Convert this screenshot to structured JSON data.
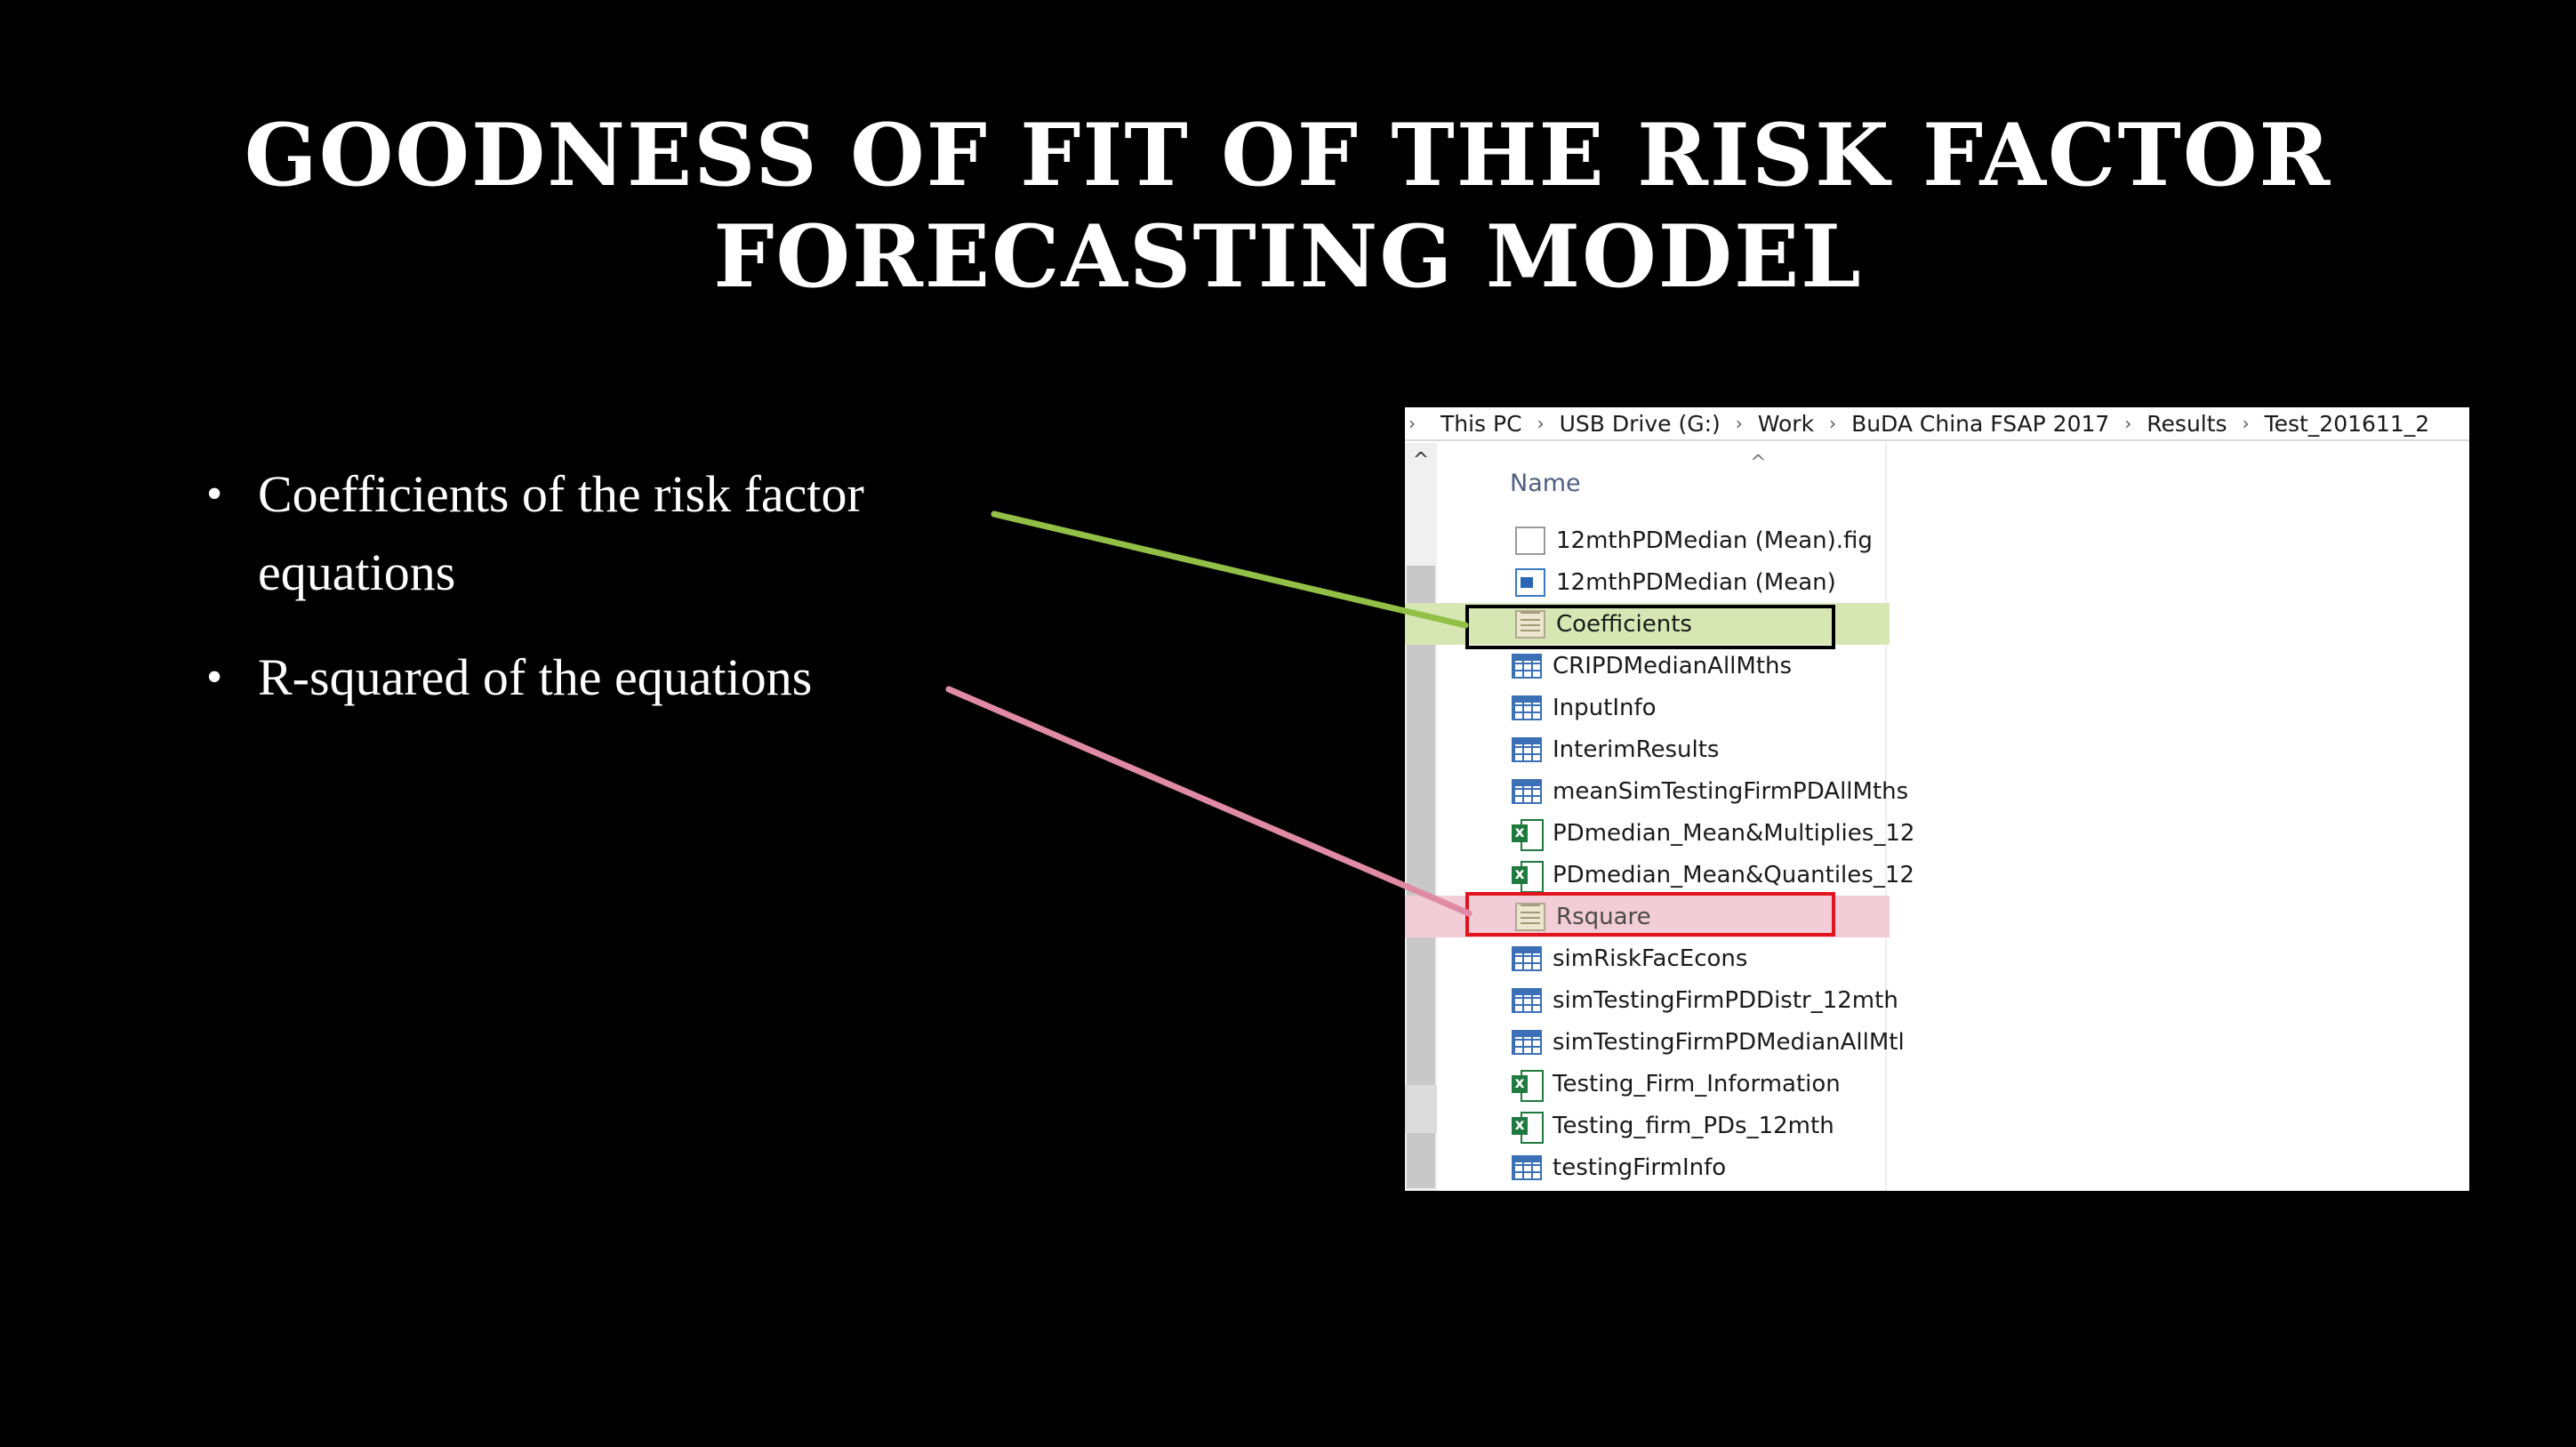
{
  "slide": {
    "title_line1": "GOODNESS OF FIT OF THE RISK FACTOR",
    "title_line2": "FORECASTING MODEL",
    "bullets": [
      {
        "line1": "Coefficients of the risk factor",
        "line2": "equations"
      },
      {
        "line1": "R-squared of the equations"
      }
    ],
    "bullet_glyph": "•"
  },
  "explorer": {
    "breadcrumb": [
      "This PC",
      "USB Drive (G:)",
      "Work",
      "BuDA China FSAP 2017",
      "Results",
      "Test_201611_2"
    ],
    "separator": "›",
    "column_header": "Name",
    "sort_indicator": "^",
    "scroll_up": "^",
    "files": [
      {
        "name": "12mthPDMedian (Mean).fig",
        "icon": "blank-document-icon"
      },
      {
        "name": "12mthPDMedian (Mean)",
        "icon": "figure-image-icon"
      },
      {
        "name": "Coefficients",
        "icon": "text-file-icon",
        "highlight": "green"
      },
      {
        "name": "CRIPDMedianAllMths",
        "icon": "mat-data-icon"
      },
      {
        "name": "InputInfo",
        "icon": "mat-data-icon"
      },
      {
        "name": "InterimResults",
        "icon": "mat-data-icon"
      },
      {
        "name": "meanSimTestingFirmPDAllMths",
        "icon": "mat-data-icon"
      },
      {
        "name": "PDmedian_Mean&Multiplies_12",
        "icon": "excel-icon"
      },
      {
        "name": "PDmedian_Mean&Quantiles_12",
        "icon": "excel-icon"
      },
      {
        "name": "Rsquare",
        "icon": "text-file-icon",
        "highlight": "pink"
      },
      {
        "name": "simRiskFacEcons",
        "icon": "mat-data-icon"
      },
      {
        "name": "simTestingFirmPDDistr_12mth",
        "icon": "mat-data-icon"
      },
      {
        "name": "simTestingFirmPDMedianAllMtl",
        "icon": "mat-data-icon"
      },
      {
        "name": "Testing_Firm_Information",
        "icon": "excel-icon"
      },
      {
        "name": "Testing_firm_PDs_12mth",
        "icon": "excel-icon"
      },
      {
        "name": "testingFirmInfo",
        "icon": "mat-data-icon"
      }
    ]
  },
  "colors": {
    "background": "#000000",
    "green_connector": "#92c047",
    "pink_connector": "#e08aa6",
    "red_callout": "#e1141e",
    "green_highlight": "#d6e7b3",
    "pink_highlight": "#f2ccd6"
  }
}
